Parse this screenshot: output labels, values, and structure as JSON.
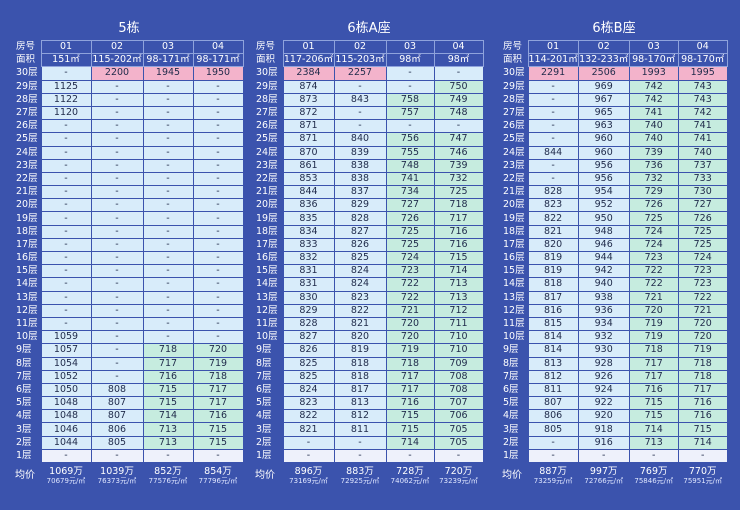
{
  "labels": {
    "room": "房号",
    "area": "面积",
    "avg": "均价",
    "floors": [
      "30层",
      "29层",
      "28层",
      "27层",
      "26层",
      "25层",
      "24层",
      "23层",
      "22层",
      "21层",
      "20层",
      "19层",
      "18层",
      "17层",
      "16层",
      "15层",
      "14层",
      "13层",
      "12层",
      "11层",
      "10层",
      "9层",
      "8层",
      "7层",
      "6层",
      "5层",
      "4层",
      "3层",
      "2层",
      "1层"
    ]
  },
  "colors": {
    "background": "#3b53ad",
    "cell": "#d8ecfa",
    "top_floor_highlight": "#f3b3cb",
    "green_highlight": "#c6ecdf",
    "row_light": "#eef1fb"
  },
  "buildings": [
    {
      "name": "5栋",
      "rooms": [
        "01",
        "02",
        "03",
        "04"
      ],
      "areas": [
        "151㎡",
        "115-202㎡",
        "98-171㎡",
        "98-171㎡"
      ],
      "rows": [
        [
          "-",
          "2200",
          "1945",
          "1950"
        ],
        [
          "1125",
          "-",
          "-",
          "-"
        ],
        [
          "1122",
          "-",
          "-",
          "-"
        ],
        [
          "1120",
          "-",
          "-",
          "-"
        ],
        [
          "-",
          "-",
          "-",
          "-"
        ],
        [
          "-",
          "-",
          "-",
          "-"
        ],
        [
          "-",
          "-",
          "-",
          "-"
        ],
        [
          "-",
          "-",
          "-",
          "-"
        ],
        [
          "-",
          "-",
          "-",
          "-"
        ],
        [
          "-",
          "-",
          "-",
          "-"
        ],
        [
          "-",
          "-",
          "-",
          "-"
        ],
        [
          "-",
          "-",
          "-",
          "-"
        ],
        [
          "-",
          "-",
          "-",
          "-"
        ],
        [
          "-",
          "-",
          "-",
          "-"
        ],
        [
          "-",
          "-",
          "-",
          "-"
        ],
        [
          "-",
          "-",
          "-",
          "-"
        ],
        [
          "-",
          "-",
          "-",
          "-"
        ],
        [
          "-",
          "-",
          "-",
          "-"
        ],
        [
          "-",
          "-",
          "-",
          "-"
        ],
        [
          "-",
          "-",
          "-",
          "-"
        ],
        [
          "1059",
          "-",
          "-",
          "-"
        ],
        [
          "1057",
          "-",
          "718",
          "720"
        ],
        [
          "1054",
          "-",
          "717",
          "719"
        ],
        [
          "1052",
          "-",
          "716",
          "718"
        ],
        [
          "1050",
          "808",
          "715",
          "717"
        ],
        [
          "1048",
          "807",
          "715",
          "717"
        ],
        [
          "1048",
          "807",
          "714",
          "716"
        ],
        [
          "1046",
          "806",
          "713",
          "715"
        ],
        [
          "1044",
          "805",
          "713",
          "715"
        ],
        [
          "-",
          "-",
          "-",
          "-"
        ]
      ],
      "avg": [
        {
          "total": "1069万",
          "unit": "70679元/㎡"
        },
        {
          "total": "1039万",
          "unit": "76373元/㎡"
        },
        {
          "total": "852万",
          "unit": "77576元/㎡"
        },
        {
          "total": "854万",
          "unit": "77796元/㎡"
        }
      ]
    },
    {
      "name": "6栋A座",
      "rooms": [
        "01",
        "02",
        "03",
        "04"
      ],
      "areas": [
        "117-206㎡",
        "115-203㎡",
        "98㎡",
        "98㎡"
      ],
      "rows": [
        [
          "2384",
          "2257",
          "-",
          "-"
        ],
        [
          "874",
          "-",
          "-",
          "750"
        ],
        [
          "873",
          "843",
          "758",
          "749"
        ],
        [
          "872",
          "-",
          "757",
          "748"
        ],
        [
          "871",
          "-",
          "-",
          "-"
        ],
        [
          "871",
          "840",
          "756",
          "747"
        ],
        [
          "870",
          "839",
          "755",
          "746"
        ],
        [
          "861",
          "838",
          "748",
          "739"
        ],
        [
          "853",
          "838",
          "741",
          "732"
        ],
        [
          "844",
          "837",
          "734",
          "725"
        ],
        [
          "836",
          "829",
          "727",
          "718"
        ],
        [
          "835",
          "828",
          "726",
          "717"
        ],
        [
          "834",
          "827",
          "725",
          "716"
        ],
        [
          "833",
          "826",
          "725",
          "716"
        ],
        [
          "832",
          "825",
          "724",
          "715"
        ],
        [
          "831",
          "824",
          "723",
          "714"
        ],
        [
          "831",
          "824",
          "722",
          "713"
        ],
        [
          "830",
          "823",
          "722",
          "713"
        ],
        [
          "829",
          "822",
          "721",
          "712"
        ],
        [
          "828",
          "821",
          "720",
          "711"
        ],
        [
          "827",
          "820",
          "720",
          "710"
        ],
        [
          "826",
          "819",
          "719",
          "710"
        ],
        [
          "825",
          "818",
          "718",
          "709"
        ],
        [
          "825",
          "818",
          "717",
          "708"
        ],
        [
          "824",
          "817",
          "717",
          "708"
        ],
        [
          "823",
          "813",
          "716",
          "707"
        ],
        [
          "822",
          "812",
          "715",
          "706"
        ],
        [
          "821",
          "811",
          "715",
          "705"
        ],
        [
          "-",
          "-",
          "714",
          "705"
        ],
        [
          "-",
          "-",
          "-",
          "-"
        ]
      ],
      "avg": [
        {
          "total": "896万",
          "unit": "73169元/㎡"
        },
        {
          "total": "883万",
          "unit": "72925元/㎡"
        },
        {
          "total": "728万",
          "unit": "74062元/㎡"
        },
        {
          "total": "720万",
          "unit": "73239元/㎡"
        }
      ]
    },
    {
      "name": "6栋B座",
      "rooms": [
        "01",
        "02",
        "03",
        "04"
      ],
      "areas": [
        "114-201㎡",
        "132-233㎡",
        "98-170㎡",
        "98-170㎡"
      ],
      "rows": [
        [
          "2291",
          "2506",
          "1993",
          "1995"
        ],
        [
          "-",
          "969",
          "742",
          "743"
        ],
        [
          "-",
          "967",
          "742",
          "743"
        ],
        [
          "-",
          "965",
          "741",
          "742"
        ],
        [
          "-",
          "963",
          "740",
          "741"
        ],
        [
          "-",
          "960",
          "740",
          "741"
        ],
        [
          "844",
          "960",
          "739",
          "740"
        ],
        [
          "-",
          "956",
          "736",
          "737"
        ],
        [
          "-",
          "956",
          "732",
          "733"
        ],
        [
          "828",
          "954",
          "729",
          "730"
        ],
        [
          "823",
          "952",
          "726",
          "727"
        ],
        [
          "822",
          "950",
          "725",
          "726"
        ],
        [
          "821",
          "948",
          "724",
          "725"
        ],
        [
          "820",
          "946",
          "724",
          "725"
        ],
        [
          "819",
          "944",
          "723",
          "724"
        ],
        [
          "819",
          "942",
          "722",
          "723"
        ],
        [
          "818",
          "940",
          "722",
          "723"
        ],
        [
          "817",
          "938",
          "721",
          "722"
        ],
        [
          "816",
          "936",
          "720",
          "721"
        ],
        [
          "815",
          "934",
          "719",
          "720"
        ],
        [
          "814",
          "932",
          "719",
          "720"
        ],
        [
          "814",
          "930",
          "718",
          "719"
        ],
        [
          "813",
          "928",
          "717",
          "718"
        ],
        [
          "812",
          "926",
          "717",
          "718"
        ],
        [
          "811",
          "924",
          "716",
          "717"
        ],
        [
          "807",
          "922",
          "715",
          "716"
        ],
        [
          "806",
          "920",
          "715",
          "716"
        ],
        [
          "805",
          "918",
          "714",
          "715"
        ],
        [
          "-",
          "916",
          "713",
          "714"
        ],
        [
          "-",
          "-",
          "-",
          "-"
        ]
      ],
      "avg": [
        {
          "total": "887万",
          "unit": "73259元/㎡"
        },
        {
          "total": "997万",
          "unit": "72766元/㎡"
        },
        {
          "total": "769万",
          "unit": "75846元/㎡"
        },
        {
          "total": "770万",
          "unit": "75951元/㎡"
        }
      ]
    }
  ]
}
